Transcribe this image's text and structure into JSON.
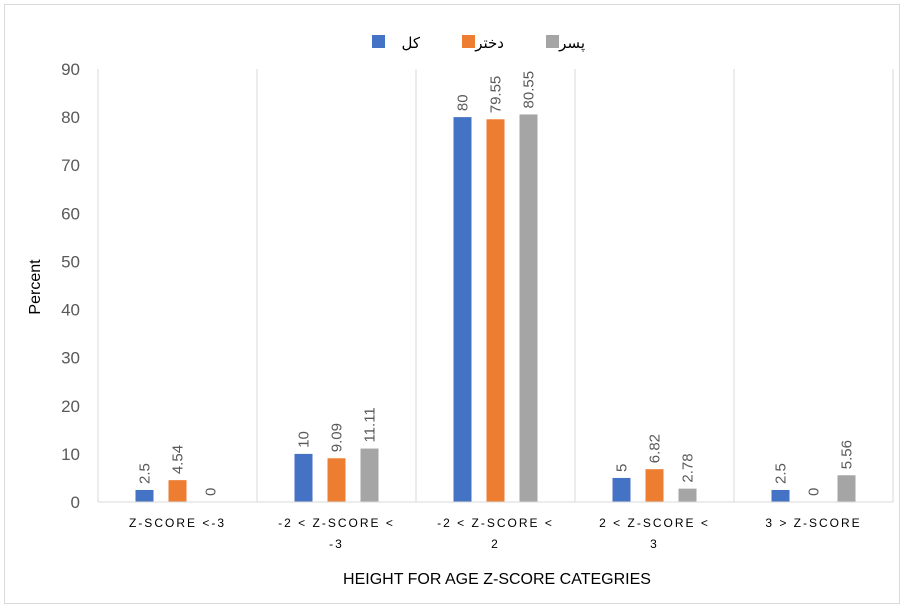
{
  "chart_data": {
    "type": "bar",
    "xlabel": "HEIGHT FOR AGE Z-SCORE CATEGRIES",
    "ylabel": "Percent",
    "ylim": [
      0,
      90
    ],
    "yticks": [
      0,
      10,
      20,
      30,
      40,
      50,
      60,
      70,
      80,
      90
    ],
    "grid": "vertical category separators",
    "legend_position": "top",
    "categories": [
      [
        "Z-SCORE <-3"
      ],
      [
        "-2 < Z-SCORE <",
        "-3"
      ],
      [
        "-2 < Z-SCORE <",
        "2"
      ],
      [
        "2 < Z-SCORE <",
        "3"
      ],
      [
        "3 > Z-SCORE"
      ]
    ],
    "series": [
      {
        "name": "کل",
        "color": "#4472c4",
        "values": [
          2.5,
          10,
          80,
          5,
          2.5
        ],
        "labels": [
          "2.5",
          "10",
          "80",
          "5",
          "2.5"
        ]
      },
      {
        "name": "دختر",
        "color": "#ed7d31",
        "values": [
          4.54,
          9.09,
          79.55,
          6.82,
          0
        ],
        "labels": [
          "4.54",
          "9.09",
          "79.55",
          "6.82",
          "0"
        ]
      },
      {
        "name": "پسر",
        "color": "#a5a5a5",
        "values": [
          0,
          11.11,
          80.55,
          2.78,
          5.56
        ],
        "labels": [
          "0",
          "11.11",
          "80.55",
          "2.78",
          "5.56"
        ]
      }
    ]
  }
}
